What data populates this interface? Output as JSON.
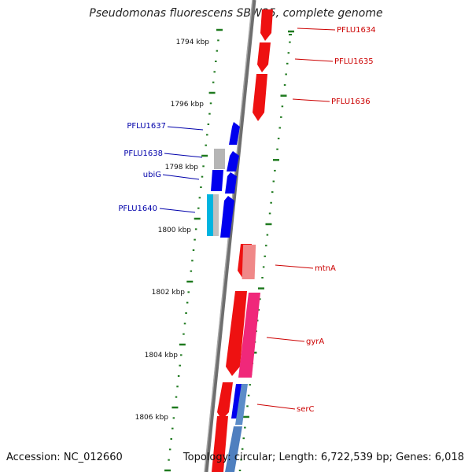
{
  "title": "Pseudomonas fluorescens SBW25, complete genome",
  "footer": {
    "accession": "Accession: NC_012660",
    "summary": "Topology: circular; Length: 6,722,539 bp; Genes: 6,018"
  },
  "colors": {
    "forward_gene": "#ee1111",
    "reverse_gene": "#0000ee",
    "forward_label": "#cc0000",
    "reverse_label": "#0000aa",
    "backbone": "#7a7a7a",
    "tick": "#1f7a1f"
  },
  "scale_labels": [
    "1794 kbp",
    "1796 kbp",
    "1798 kbp",
    "1800 kbp",
    "1802 kbp",
    "1804 kbp",
    "1806 kbp"
  ],
  "reverse_gene_labels": [
    "PFLU1637",
    "PFLU1638",
    "ubiG",
    "PFLU1640"
  ],
  "forward_gene_labels": [
    "PFLU1634",
    "PFLU1635",
    "PFLU1636",
    "mtnA",
    "gyrA",
    "serC"
  ]
}
